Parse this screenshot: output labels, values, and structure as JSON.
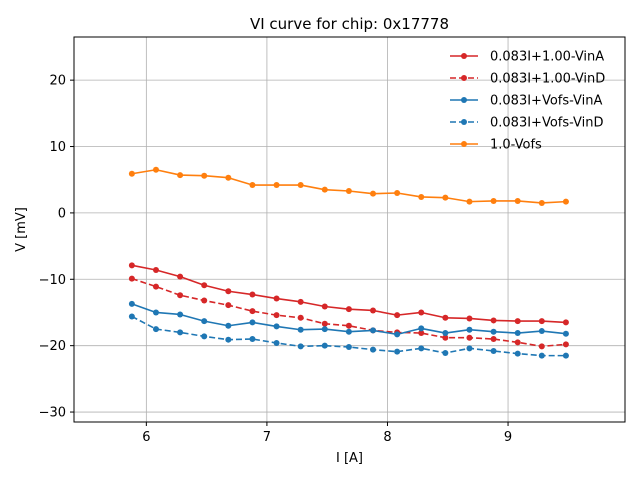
{
  "chart_data": {
    "type": "line",
    "title": "VI curve for chip: 0x17778",
    "xlabel": "I [A]",
    "ylabel": "V [mV]",
    "xlim": [
      5.4,
      9.97
    ],
    "ylim": [
      -31.5,
      26.5
    ],
    "xticks": [
      6,
      7,
      8,
      9
    ],
    "yticks": [
      -30,
      -20,
      -10,
      0,
      10,
      20
    ],
    "xtick_labels": [
      "6",
      "7",
      "8",
      "9"
    ],
    "ytick_labels": [
      "−30",
      "−20",
      "−10",
      "0",
      "10",
      "20"
    ],
    "grid": true,
    "legend_position": "top-right",
    "x": [
      5.88,
      6.08,
      6.28,
      6.48,
      6.68,
      6.88,
      7.08,
      7.28,
      7.48,
      7.68,
      7.88,
      8.08,
      8.28,
      8.48,
      8.68,
      8.88,
      9.08,
      9.28,
      9.48
    ],
    "series": [
      {
        "name": "0.083I+1.00-VinA",
        "color": "#d62728",
        "linestyle": "solid",
        "values": [
          -7.9,
          -8.6,
          -9.6,
          -10.9,
          -11.8,
          -12.3,
          -12.9,
          -13.4,
          -14.1,
          -14.5,
          -14.7,
          -15.4,
          -15.0,
          -15.8,
          -15.9,
          -16.2,
          -16.3,
          -16.3,
          -16.5
        ]
      },
      {
        "name": "0.083I+1.00-VinD",
        "color": "#d62728",
        "linestyle": "dashed",
        "values": [
          -9.9,
          -11.1,
          -12.4,
          -13.2,
          -13.9,
          -14.8,
          -15.4,
          -15.8,
          -16.7,
          -17.0,
          -17.7,
          -18.0,
          -18.1,
          -18.8,
          -18.8,
          -19.0,
          -19.5,
          -20.1,
          -19.8
        ]
      },
      {
        "name": "0.083I+Vofs-VinA",
        "color": "#1f77b4",
        "linestyle": "solid",
        "values": [
          -13.7,
          -15.0,
          -15.3,
          -16.3,
          -17.0,
          -16.5,
          -17.1,
          -17.6,
          -17.5,
          -17.9,
          -17.7,
          -18.3,
          -17.4,
          -18.1,
          -17.6,
          -17.9,
          -18.1,
          -17.8,
          -18.2
        ]
      },
      {
        "name": "0.083I+Vofs-VinD",
        "color": "#1f77b4",
        "linestyle": "dashed",
        "values": [
          -15.6,
          -17.5,
          -18.0,
          -18.6,
          -19.1,
          -19.0,
          -19.6,
          -20.1,
          -20.0,
          -20.2,
          -20.6,
          -20.9,
          -20.4,
          -21.1,
          -20.4,
          -20.8,
          -21.2,
          -21.5,
          -21.5
        ]
      },
      {
        "name": "1.0-Vofs",
        "color": "#ff7f0e",
        "linestyle": "solid",
        "values": [
          5.9,
          6.5,
          5.7,
          5.6,
          5.3,
          4.2,
          4.2,
          4.2,
          3.5,
          3.3,
          2.9,
          3.0,
          2.4,
          2.3,
          1.7,
          1.8,
          1.8,
          1.5,
          1.7
        ]
      }
    ]
  }
}
